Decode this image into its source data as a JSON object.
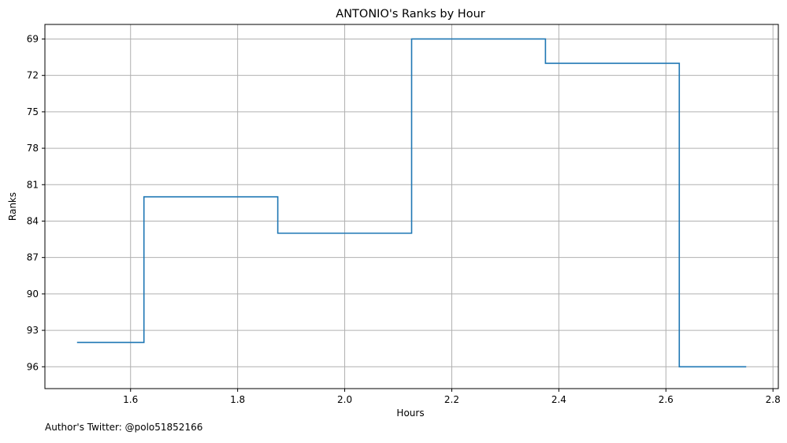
{
  "chart_data": {
    "type": "line",
    "title": "ANTONIO's Ranks by Hour",
    "xlabel": "Hours",
    "ylabel": "Ranks",
    "step": "mid",
    "y_inverted": true,
    "xlim": [
      1.44,
      2.81
    ],
    "ylim": [
      97.8,
      67.8
    ],
    "xticks": [
      1.6,
      1.8,
      2.0,
      2.2,
      2.4,
      2.6,
      2.8
    ],
    "xtick_labels": [
      "1.6",
      "1.8",
      "2.0",
      "2.2",
      "2.4",
      "2.6",
      "2.8"
    ],
    "yticks": [
      69,
      72,
      75,
      78,
      81,
      84,
      87,
      90,
      93,
      96
    ],
    "ytick_labels": [
      "69",
      "72",
      "75",
      "78",
      "81",
      "84",
      "87",
      "90",
      "93",
      "96"
    ],
    "grid": true,
    "series": [
      {
        "color": "#1f77b4",
        "x": [
          1.5,
          1.75,
          2.0,
          2.25,
          2.5,
          2.75
        ],
        "y": [
          94,
          82,
          85,
          69,
          71,
          96
        ]
      }
    ]
  },
  "footer": {
    "text": "Author's Twitter: @polo51852166"
  }
}
